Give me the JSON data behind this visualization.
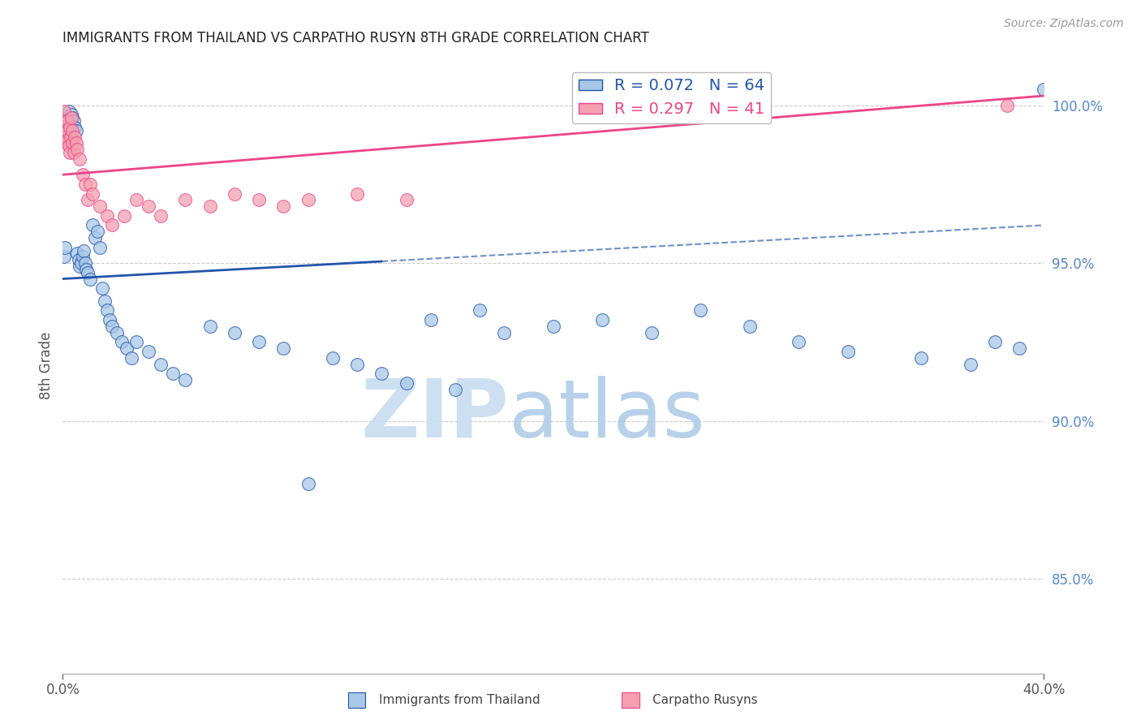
{
  "title": "IMMIGRANTS FROM THAILAND VS CARPATHO RUSYN 8TH GRADE CORRELATION CHART",
  "source": "Source: ZipAtlas.com",
  "ylabel": "8th Grade",
  "watermark_zip": "ZIP",
  "watermark_atlas": "atlas",
  "legend_label_blue": "Immigrants from Thailand",
  "legend_label_pink": "Carpatho Rusyns",
  "legend_r_blue": "R = 0.072",
  "legend_n_blue": "N = 64",
  "legend_r_pink": "R = 0.297",
  "legend_n_pink": "N = 41",
  "x_min": 0.0,
  "x_max": 40.0,
  "y_min": 82.0,
  "y_max": 101.5,
  "yticks": [
    85.0,
    90.0,
    95.0,
    100.0
  ],
  "xtick_left": "0.0%",
  "xtick_right": "40.0%",
  "blue_color": "#A8C8E8",
  "pink_color": "#F4A0B0",
  "trend_blue_color": "#2255AA",
  "trend_pink_color": "#EE4488",
  "grid_color": "#CCCCCC",
  "title_color": "#222222",
  "axis_tick_color": "#5588CC",
  "blue_scatter_x": [
    0.05,
    0.1,
    0.15,
    0.2,
    0.25,
    0.3,
    0.35,
    0.4,
    0.45,
    0.5,
    0.55,
    0.6,
    0.65,
    0.7,
    0.75,
    0.8,
    0.85,
    0.9,
    0.95,
    1.0,
    1.1,
    1.2,
    1.3,
    1.4,
    1.5,
    1.6,
    1.7,
    1.8,
    1.9,
    2.0,
    2.2,
    2.4,
    2.6,
    2.8,
    3.0,
    3.5,
    4.0,
    4.5,
    5.0,
    6.0,
    7.0,
    8.0,
    9.0,
    10.0,
    11.0,
    12.0,
    13.0,
    14.0,
    15.0,
    16.0,
    17.0,
    18.0,
    20.0,
    22.0,
    24.0,
    26.0,
    28.0,
    30.0,
    32.0,
    35.0,
    37.0,
    38.0,
    39.0,
    40.0
  ],
  "blue_scatter_y": [
    95.2,
    95.5,
    99.6,
    99.5,
    99.8,
    99.4,
    99.7,
    99.6,
    99.5,
    99.3,
    99.2,
    95.3,
    95.1,
    94.9,
    95.0,
    95.2,
    95.4,
    95.0,
    94.8,
    94.7,
    94.5,
    96.2,
    95.8,
    96.0,
    95.5,
    94.2,
    93.8,
    93.5,
    93.2,
    93.0,
    92.8,
    92.5,
    92.3,
    92.0,
    92.5,
    92.2,
    91.8,
    91.5,
    91.3,
    93.0,
    92.8,
    92.5,
    92.3,
    88.0,
    92.0,
    91.8,
    91.5,
    91.2,
    93.2,
    91.0,
    93.5,
    92.8,
    93.0,
    93.2,
    92.8,
    93.5,
    93.0,
    92.5,
    92.2,
    92.0,
    91.8,
    92.5,
    92.3,
    100.5
  ],
  "pink_scatter_x": [
    0.05,
    0.08,
    0.1,
    0.12,
    0.15,
    0.18,
    0.2,
    0.22,
    0.25,
    0.28,
    0.3,
    0.32,
    0.35,
    0.38,
    0.4,
    0.45,
    0.5,
    0.55,
    0.6,
    0.7,
    0.8,
    0.9,
    1.0,
    1.1,
    1.2,
    1.5,
    1.8,
    2.0,
    2.5,
    3.0,
    3.5,
    4.0,
    5.0,
    6.0,
    7.0,
    8.0,
    9.0,
    10.0,
    12.0,
    14.0,
    38.5
  ],
  "pink_scatter_y": [
    99.8,
    99.5,
    99.2,
    99.0,
    98.8,
    99.5,
    99.2,
    98.9,
    98.7,
    98.5,
    99.3,
    99.0,
    99.6,
    99.2,
    98.8,
    98.5,
    99.0,
    98.8,
    98.6,
    98.3,
    97.8,
    97.5,
    97.0,
    97.5,
    97.2,
    96.8,
    96.5,
    96.2,
    96.5,
    97.0,
    96.8,
    96.5,
    97.0,
    96.8,
    97.2,
    97.0,
    96.8,
    97.0,
    97.2,
    97.0,
    100.0
  ],
  "blue_trend_x0": 0.0,
  "blue_trend_y0": 94.5,
  "blue_trend_x1": 40.0,
  "blue_trend_y1": 96.2,
  "blue_solid_end": 13.0,
  "pink_trend_x0": 0.0,
  "pink_trend_y0": 97.8,
  "pink_trend_x1": 40.0,
  "pink_trend_y1": 100.3
}
